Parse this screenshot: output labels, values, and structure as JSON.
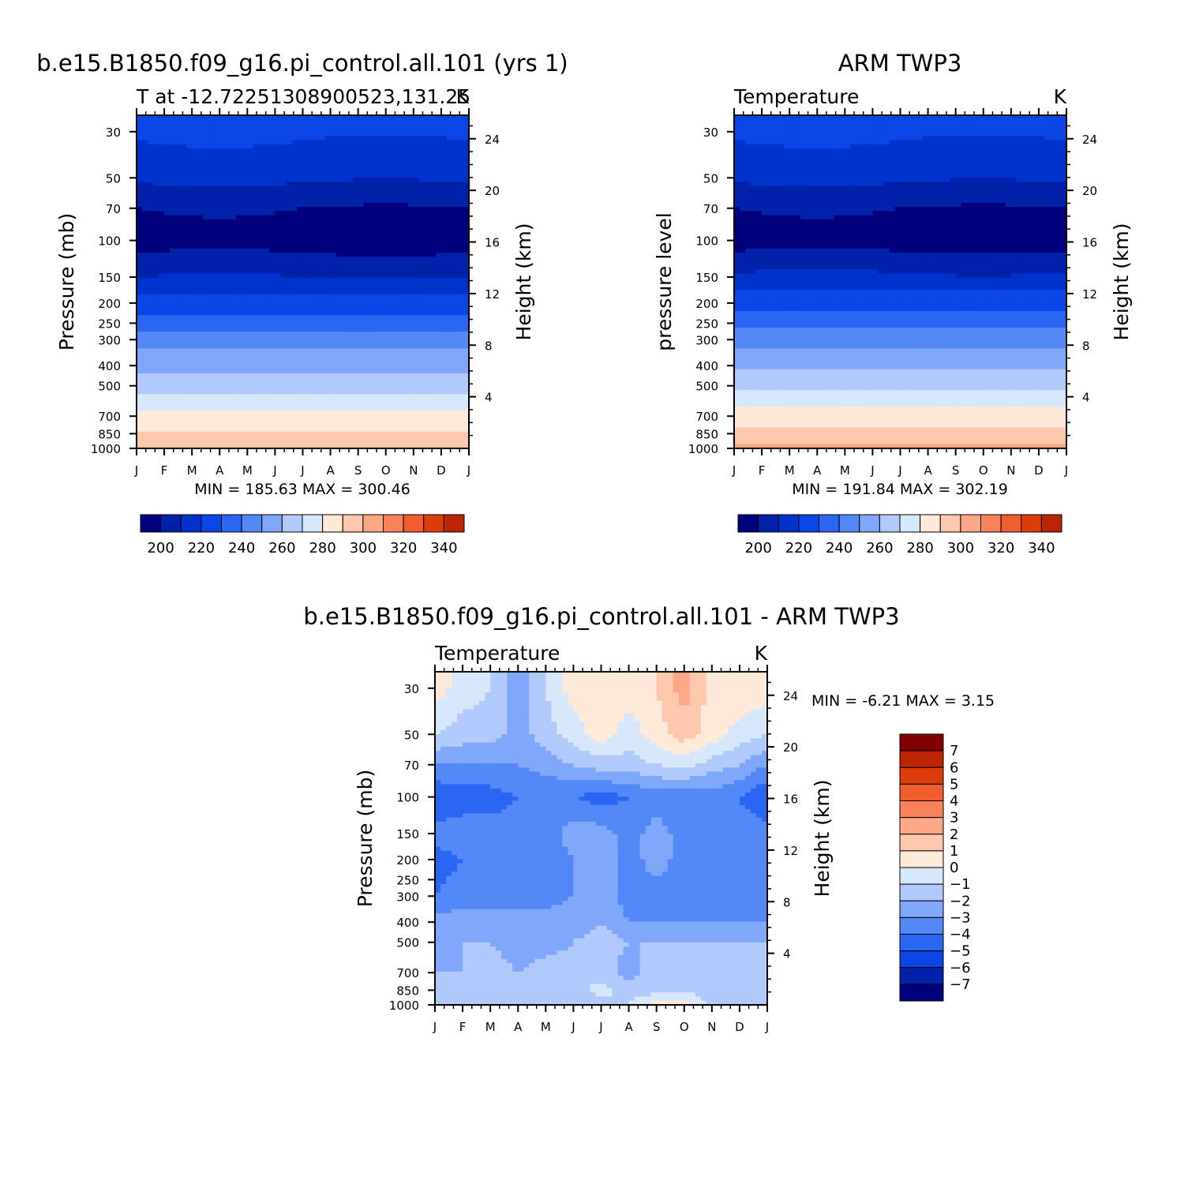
{
  "figure": {
    "panels": [
      {
        "id": "model",
        "title": "b.e15.B1850.f09_g16.pi_control.all.101 (yrs 1)",
        "left_string": "T at -12.72251308900523,131.25",
        "right_string": "K",
        "ylabel": "Pressure (mb)",
        "ylabel_right": "Height (km)",
        "stats": "MIN = 185.63 MAX = 300.46"
      },
      {
        "id": "obs",
        "title": "ARM TWP3",
        "left_string": "Temperature",
        "right_string": "K",
        "ylabel": "pressure level",
        "ylabel_right": "Height (km)",
        "stats": "MIN = 191.84 MAX = 302.19"
      },
      {
        "id": "diff",
        "title": "b.e15.B1850.f09_g16.pi_control.all.101 - ARM TWP3",
        "left_string": "Temperature",
        "right_string": "K",
        "ylabel": "Pressure (mb)",
        "ylabel_right": "Height (km)",
        "stats": "MIN =   -6.21  MAX =    3.15"
      }
    ]
  },
  "chart_data": [
    {
      "type": "heatmap",
      "title": "b.e15.B1850.f09_g16.pi_control.all.101 (yrs 1)",
      "subtitle": "T at -12.72251308900523,131.25",
      "units": "K",
      "xlabel": "",
      "x_ticks": [
        "J",
        "F",
        "M",
        "A",
        "M",
        "J",
        "J",
        "A",
        "S",
        "O",
        "N",
        "D",
        "J"
      ],
      "ylabel": "Pressure (mb)",
      "y_ticks": [
        30,
        50,
        70,
        100,
        150,
        200,
        250,
        300,
        400,
        500,
        700,
        850,
        1000
      ],
      "ylabel_right": "Height (km)",
      "y_ticks_right": [
        24,
        20,
        16,
        12,
        8,
        4
      ],
      "ylim": [
        1000,
        25
      ],
      "y_scale": "log",
      "colorbar_levels": [
        200,
        210,
        220,
        230,
        240,
        250,
        260,
        270,
        280,
        290,
        300,
        310,
        320,
        330,
        340
      ],
      "colorbar_labels": [
        200,
        220,
        240,
        260,
        280,
        300,
        320,
        340
      ],
      "min": 185.63,
      "max": 300.46,
      "approx_levels": [
        {
          "p": 30,
          "T": 222
        },
        {
          "p": 50,
          "T": 212
        },
        {
          "p": 70,
          "T": 200
        },
        {
          "p": 100,
          "T": 195
        },
        {
          "p": 150,
          "T": 210
        },
        {
          "p": 200,
          "T": 225
        },
        {
          "p": 250,
          "T": 235
        },
        {
          "p": 300,
          "T": 245
        },
        {
          "p": 400,
          "T": 257
        },
        {
          "p": 500,
          "T": 266
        },
        {
          "p": 700,
          "T": 282
        },
        {
          "p": 850,
          "T": 292
        },
        {
          "p": 1000,
          "T": 299
        }
      ]
    },
    {
      "type": "heatmap",
      "title": "ARM TWP3",
      "subtitle": "Temperature",
      "units": "K",
      "xlabel": "",
      "x_ticks": [
        "J",
        "F",
        "M",
        "A",
        "M",
        "J",
        "J",
        "A",
        "S",
        "O",
        "N",
        "D",
        "J"
      ],
      "ylabel": "pressure level",
      "y_ticks": [
        30,
        50,
        70,
        100,
        150,
        200,
        250,
        300,
        400,
        500,
        700,
        850,
        1000
      ],
      "ylabel_right": "Height (km)",
      "y_ticks_right": [
        24,
        20,
        16,
        12,
        8,
        4
      ],
      "ylim": [
        1000,
        25
      ],
      "y_scale": "log",
      "colorbar_levels": [
        200,
        210,
        220,
        230,
        240,
        250,
        260,
        270,
        280,
        290,
        300,
        310,
        320,
        330,
        340
      ],
      "colorbar_labels": [
        200,
        220,
        240,
        260,
        280,
        300,
        320,
        340
      ],
      "min": 191.84,
      "max": 302.19,
      "approx_levels": [
        {
          "p": 30,
          "T": 222
        },
        {
          "p": 50,
          "T": 212
        },
        {
          "p": 70,
          "T": 200
        },
        {
          "p": 100,
          "T": 195
        },
        {
          "p": 150,
          "T": 212
        },
        {
          "p": 200,
          "T": 226
        },
        {
          "p": 250,
          "T": 237
        },
        {
          "p": 300,
          "T": 247
        },
        {
          "p": 400,
          "T": 258
        },
        {
          "p": 500,
          "T": 268
        },
        {
          "p": 700,
          "T": 284
        },
        {
          "p": 850,
          "T": 294
        },
        {
          "p": 1000,
          "T": 301
        }
      ]
    },
    {
      "type": "heatmap",
      "title": "b.e15.B1850.f09_g16.pi_control.all.101 - ARM TWP3",
      "subtitle": "Temperature",
      "units": "K",
      "xlabel": "",
      "x_ticks": [
        "J",
        "F",
        "M",
        "A",
        "M",
        "J",
        "J",
        "A",
        "S",
        "O",
        "N",
        "D",
        "J"
      ],
      "ylabel": "Pressure (mb)",
      "y_ticks": [
        30,
        50,
        70,
        100,
        150,
        200,
        250,
        300,
        400,
        500,
        700,
        850,
        1000
      ],
      "ylabel_right": "Height (km)",
      "y_ticks_right": [
        24,
        20,
        16,
        12,
        8,
        4
      ],
      "ylim": [
        1000,
        25
      ],
      "y_scale": "log",
      "colorbar_levels": [
        -7,
        -6,
        -5,
        -4,
        -3,
        -2,
        -1,
        0,
        1,
        2,
        3,
        4,
        5,
        6,
        7
      ],
      "colorbar_labels": [
        7,
        6,
        5,
        4,
        3,
        2,
        1,
        0,
        -1,
        -2,
        -3,
        -4,
        -5,
        -6,
        -7
      ],
      "min": -6.21,
      "max": 3.15,
      "months": [
        "J",
        "F",
        "M",
        "A",
        "M",
        "J",
        "J",
        "A",
        "S",
        "O",
        "N",
        "D",
        "J"
      ],
      "pressure_levels": [
        30,
        50,
        70,
        100,
        150,
        200,
        300,
        400,
        500,
        700,
        850,
        1000
      ],
      "approx_values": [
        [
          0.5,
          -0.5,
          -1,
          -2.5,
          -1,
          0.5,
          0.5,
          0.5,
          1,
          2.5,
          0.5,
          1,
          0.5
        ],
        [
          -1,
          -1.5,
          -1.5,
          -2.5,
          -1.5,
          -0.5,
          0.5,
          -0.5,
          0.5,
          1.5,
          0.5,
          -0.5,
          -1
        ],
        [
          -3,
          -3,
          -3,
          -3,
          -2.5,
          -2,
          -1.5,
          -1.5,
          -1,
          -0.5,
          -1.5,
          -2,
          -3
        ],
        [
          -5,
          -4.5,
          -4.5,
          -4,
          -4,
          -4,
          -4.5,
          -4,
          -3.5,
          -4,
          -3.5,
          -4,
          -5
        ],
        [
          -3.5,
          -3.5,
          -3.5,
          -3.5,
          -3.5,
          -2.5,
          -2.5,
          -3.5,
          -2.5,
          -3.5,
          -3.5,
          -3.5,
          -3.5
        ],
        [
          -4.5,
          -4,
          -3.5,
          -3,
          -3.5,
          -3,
          -2.5,
          -3.5,
          -2.5,
          -3.5,
          -3.5,
          -3.5,
          -4
        ],
        [
          -4,
          -3.5,
          -3.5,
          -3.5,
          -3.5,
          -3,
          -2.5,
          -3.5,
          -3.5,
          -3.5,
          -3.5,
          -3.5,
          -3.5
        ],
        [
          -2.5,
          -2.5,
          -2.5,
          -2.5,
          -2.5,
          -2.5,
          -2,
          -3,
          -3,
          -3,
          -3,
          -3,
          -3
        ],
        [
          -2.5,
          -2,
          -2,
          -2.5,
          -2.5,
          -2,
          -1.5,
          -2,
          -2,
          -2,
          -2,
          -2,
          -2
        ],
        [
          -2,
          -2,
          -1.5,
          -2,
          -1.5,
          -1.5,
          -1.5,
          -2.5,
          -1.5,
          -1.5,
          -1.5,
          -2,
          -2
        ],
        [
          -2,
          -1.5,
          -1.5,
          -1.5,
          -1.5,
          -1.5,
          -0.5,
          -1.5,
          -1.5,
          -1,
          -1.5,
          -2,
          -2
        ],
        [
          -1.5,
          -1.5,
          -1.5,
          -1.5,
          -1.5,
          -1.5,
          -1.5,
          -1,
          0.5,
          0.5,
          -1.5,
          -1.5,
          -1.5
        ]
      ]
    }
  ]
}
